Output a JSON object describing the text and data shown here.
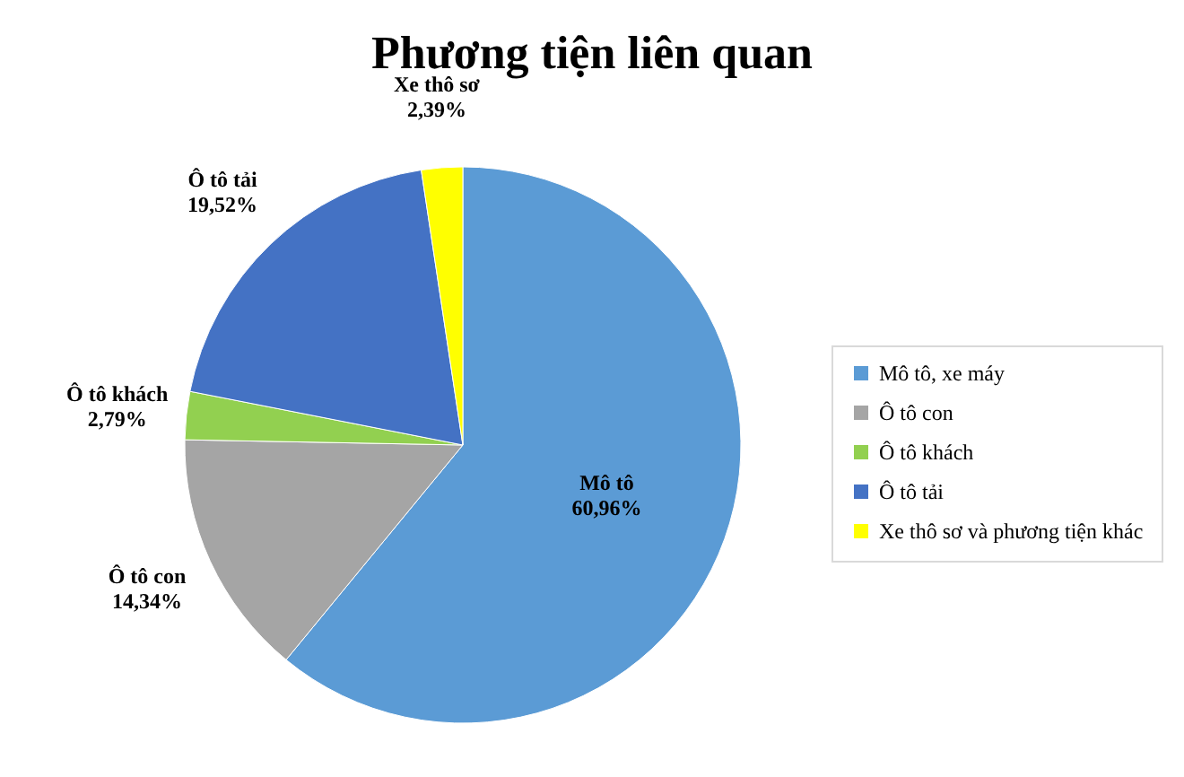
{
  "chart_data": {
    "type": "pie",
    "title": "Phương tiện liên quan",
    "categories": [
      "Mô tô, xe máy",
      "Ô tô con",
      "Ô tô khách",
      "Ô tô tải",
      "Xe thô sơ và phương tiện khác"
    ],
    "values": [
      60.96,
      14.34,
      2.79,
      19.52,
      2.39
    ],
    "colors": [
      "#5b9bd5",
      "#a5a5a5",
      "#92d050",
      "#4472c4",
      "#ffff00"
    ],
    "value_labels": [
      "Mô tô\n60,96%",
      "Ô tô con\n14,34%",
      "Ô tô khách\n2,79%",
      "Ô tô tải\n19,52%",
      "Xe thô sơ\n2,39%"
    ],
    "legend": "right"
  }
}
